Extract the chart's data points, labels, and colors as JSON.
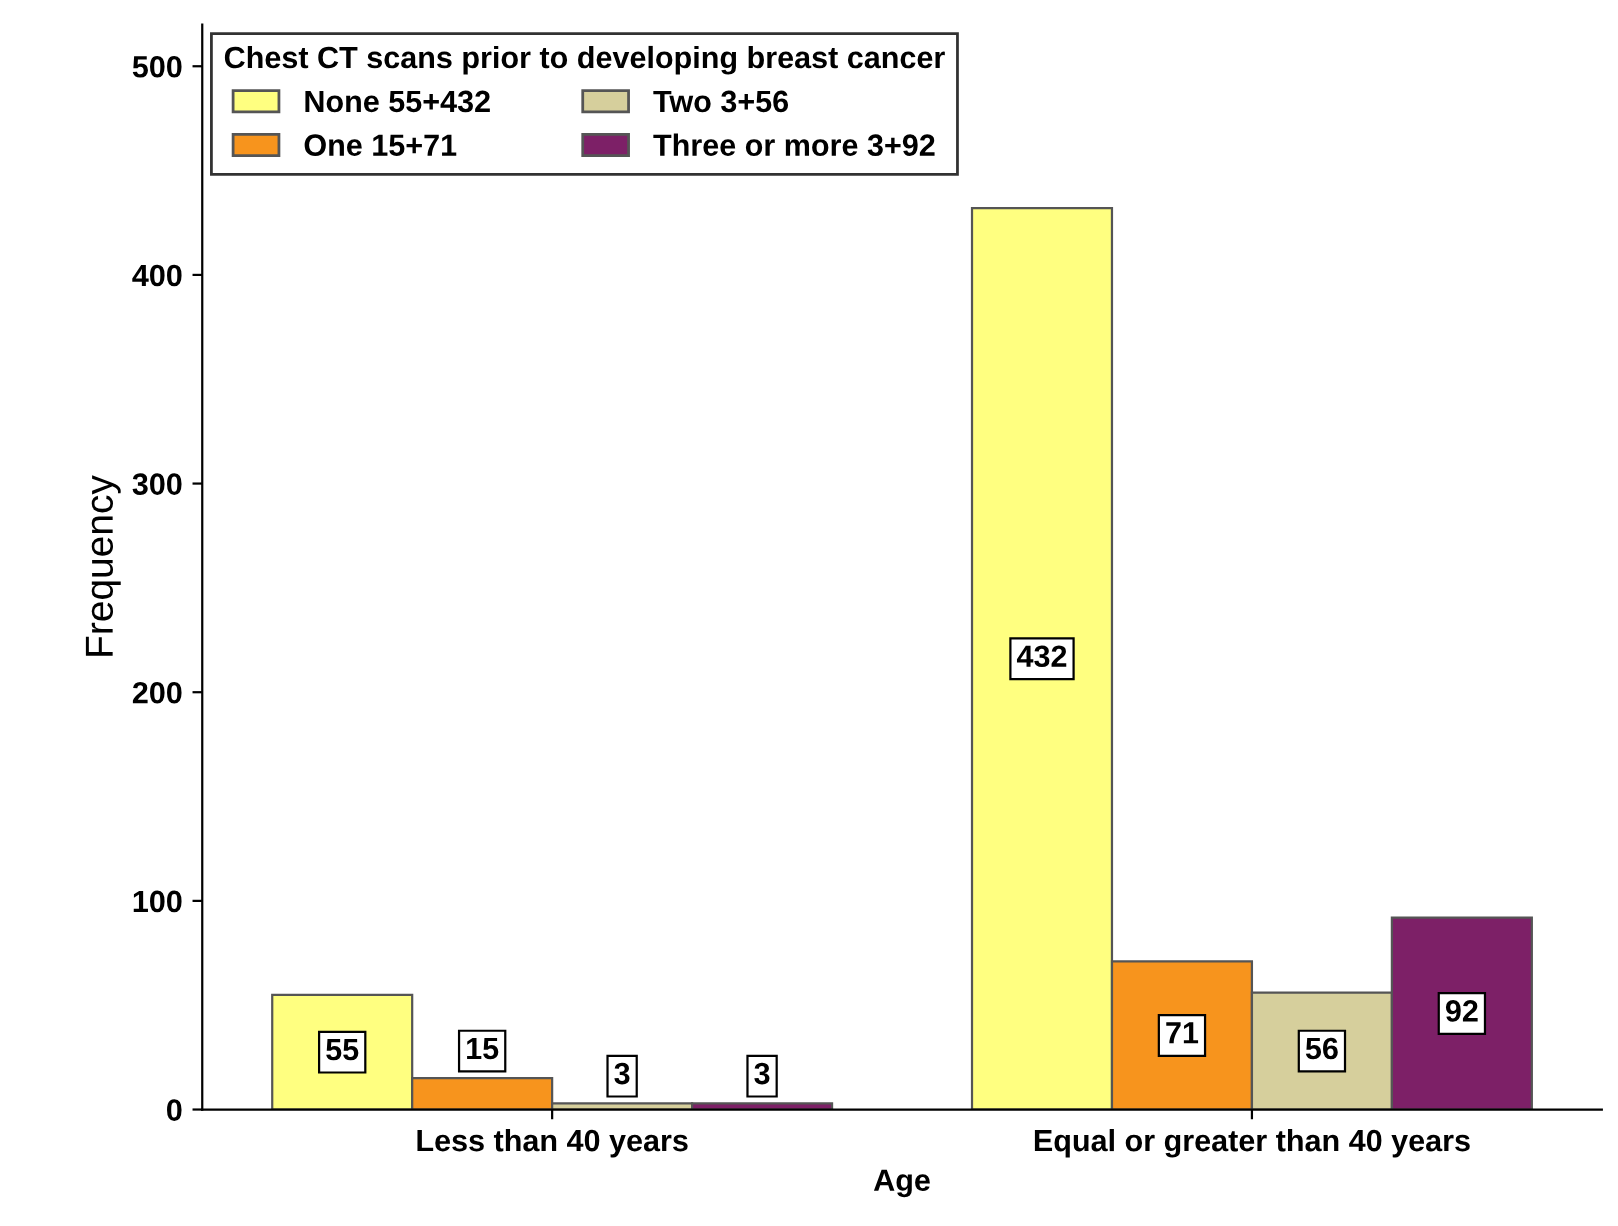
{
  "chart_data": {
    "type": "bar",
    "xlabel": "Age",
    "ylabel": "Frequency",
    "legend_title": "Chest CT scans prior to developing breast cancer",
    "categories": [
      "Less than 40 years",
      "Equal or greater than 40 years"
    ],
    "series": [
      {
        "name": "None 55+432",
        "color": "#ffff80",
        "values": [
          55,
          432
        ]
      },
      {
        "name": "One 15+71",
        "color": "#f7941d",
        "values": [
          15,
          71
        ]
      },
      {
        "name": "Two 3+56",
        "color": "#d6cf9c",
        "values": [
          3,
          56
        ]
      },
      {
        "name": "Three or more 3+92",
        "color": "#7d2067",
        "values": [
          3,
          92
        ]
      }
    ],
    "ylim": [
      0,
      520
    ],
    "yticks": [
      0,
      100,
      200,
      300,
      400,
      500
    ],
    "data_labels": true,
    "grid": false,
    "legend": "top left"
  }
}
